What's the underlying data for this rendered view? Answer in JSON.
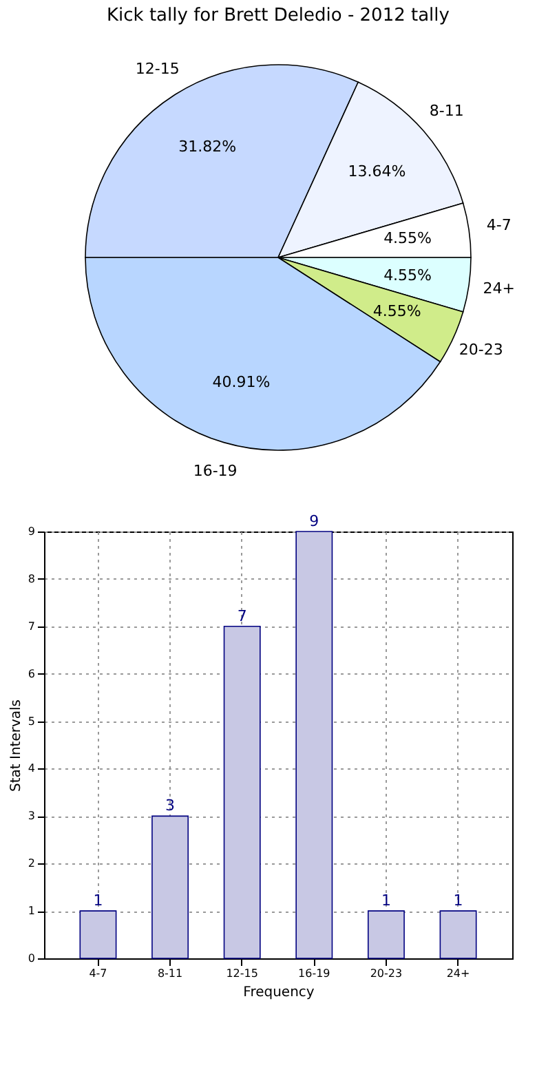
{
  "chart_data": [
    {
      "type": "pie",
      "title": "Kick tally for Brett Deledio - 2012 tally",
      "categories": [
        "12-15",
        "8-11",
        "4-7",
        "24+",
        "20-23",
        "16-19"
      ],
      "values": [
        31.82,
        13.64,
        4.55,
        4.55,
        4.55,
        40.91
      ],
      "value_labels": [
        "31.82%",
        "13.64%",
        "4.55%",
        "4.55%",
        "4.55%",
        "40.91%"
      ],
      "colors": [
        "#c6d9ff",
        "#eef3ff",
        "#ffffff",
        "#dcffff",
        "#d0ec8a",
        "#b8d6ff"
      ]
    },
    {
      "type": "bar",
      "categories": [
        "4-7",
        "8-11",
        "12-15",
        "16-19",
        "20-23",
        "24+"
      ],
      "values": [
        1,
        3,
        7,
        9,
        1,
        1
      ],
      "color": "#c8c8e4",
      "xlabel": "Frequency",
      "ylabel": "Stat Intervals",
      "ylim": [
        0,
        9
      ],
      "yticks": [
        0,
        1,
        2,
        3,
        4,
        5,
        6,
        7,
        8,
        9
      ],
      "grid": true,
      "data_labels": true
    }
  ]
}
